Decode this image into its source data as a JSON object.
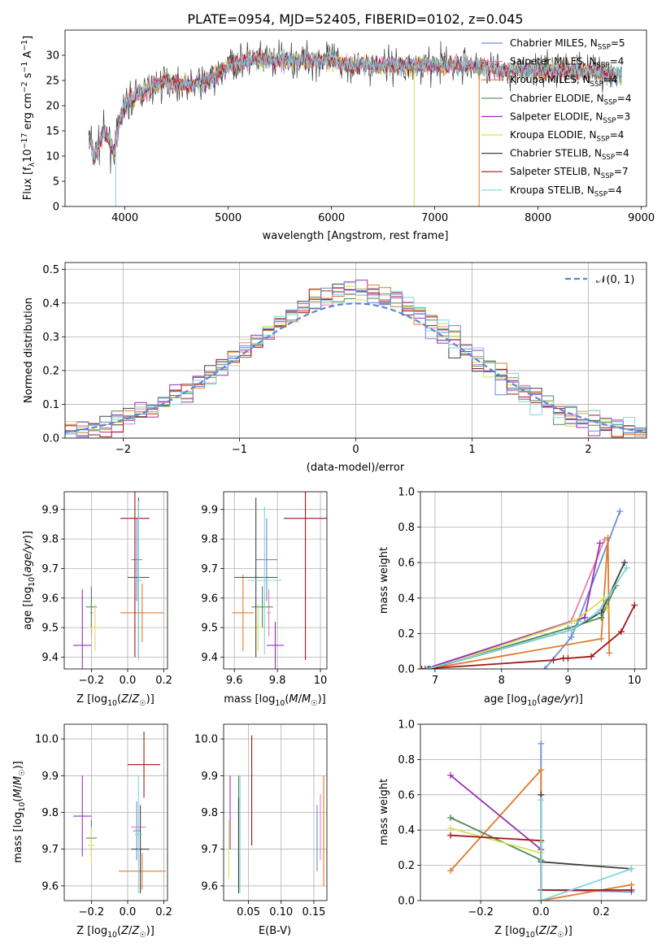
{
  "page_title": "PLATE=0954, MJD=52405, FIBERID=0102, z=0.045",
  "legend": [
    {
      "name": "Chabrier MILES, N",
      "suffix": "=5",
      "color": "#6a8fd6"
    },
    {
      "name": "Salpeter MILES, N",
      "suffix": "=4",
      "color": "#e87fb0"
    },
    {
      "name": "Kroupa MILES, N",
      "suffix": "=4",
      "color": "#e07b2a"
    },
    {
      "name": "Chabrier ELODIE, N",
      "suffix": "=4",
      "color": "#4f8a5b"
    },
    {
      "name": "Salpeter ELODIE, N",
      "suffix": "=3",
      "color": "#9b30b0"
    },
    {
      "name": "Kroupa ELODIE, N",
      "suffix": "=4",
      "color": "#d4e157"
    },
    {
      "name": "Chabrier STELIB, N",
      "suffix": "=4",
      "color": "#404040"
    },
    {
      "name": "Salpeter STELIB, N",
      "suffix": "=7",
      "color": "#a01818"
    },
    {
      "name": "Kroupa STELIB, N",
      "suffix": "=4",
      "color": "#7fd6dc"
    }
  ],
  "legend_sub": "SSP",
  "normal_legend": "𝒩(0, 1)",
  "chart_data": [
    {
      "id": "spectrum",
      "type": "line",
      "xlabel": "wavelength [Angstrom, rest frame]",
      "ylabel": "Flux [f",
      "ylabel_full": "Flux [fλ10⁻¹⁷ erg cm⁻² s⁻¹ A⁻¹]",
      "xlim": [
        3420,
        9050
      ],
      "ylim": [
        0,
        35
      ],
      "xticks": [
        4000,
        5000,
        6000,
        7000,
        8000,
        9000
      ],
      "yticks": [
        0,
        5,
        10,
        15,
        20,
        25,
        30
      ],
      "anchors": [
        [
          3650,
          14
        ],
        [
          3700,
          10
        ],
        [
          3800,
          15
        ],
        [
          3900,
          11
        ],
        [
          3950,
          17
        ],
        [
          4000,
          20
        ],
        [
          4100,
          22
        ],
        [
          4200,
          23
        ],
        [
          4300,
          24
        ],
        [
          4400,
          25
        ],
        [
          4600,
          24
        ],
        [
          4800,
          25
        ],
        [
          4900,
          26
        ],
        [
          5000,
          28
        ],
        [
          5200,
          29
        ],
        [
          5500,
          29
        ],
        [
          5800,
          29
        ],
        [
          6000,
          29
        ],
        [
          6200,
          28
        ],
        [
          6500,
          28
        ],
        [
          6800,
          28
        ],
        [
          7000,
          28
        ],
        [
          7300,
          28
        ],
        [
          7600,
          27
        ],
        [
          7900,
          27
        ],
        [
          8200,
          27
        ],
        [
          8500,
          27
        ],
        [
          8800,
          26
        ]
      ],
      "dropouts": [
        [
          3910,
          0
        ],
        [
          6800,
          0
        ],
        [
          7430,
          0
        ]
      ]
    },
    {
      "id": "residuals",
      "type": "histogram",
      "xlabel": "(data-model)/error",
      "ylabel": "Normed distribution",
      "xlim": [
        -2.5,
        2.5
      ],
      "ylim": [
        0,
        0.52
      ],
      "xticks": [
        -2,
        -1,
        0,
        1,
        2
      ],
      "yticks": [
        0.0,
        0.1,
        0.2,
        0.3,
        0.4,
        0.5
      ],
      "bin_edges_start": -2.5,
      "bin_width": 0.1,
      "bin_count": 50,
      "normal_curve": {
        "mu": 0,
        "sigma": 1
      }
    },
    {
      "id": "age_vs_Z",
      "type": "scatter",
      "xlabel": "Z [log",
      "xlabel_full": "Z [log10(Z/Z☉)]",
      "ylabel_full": "age [log10(age/yr)]",
      "xlim": [
        -0.35,
        0.22
      ],
      "ylim": [
        9.36,
        9.96
      ],
      "xticks": [
        -0.2,
        0.0,
        0.2
      ],
      "yticks": [
        9.4,
        9.5,
        9.6,
        9.7,
        9.8,
        9.9
      ],
      "points": [
        {
          "x": 0.05,
          "y": 9.73,
          "xerr": 0.03,
          "yerr": 0.14,
          "c": 0
        },
        {
          "x": -0.2,
          "y": 9.55,
          "xerr": 0.01,
          "yerr": 0.08,
          "c": 1
        },
        {
          "x": 0.08,
          "y": 9.55,
          "xerr": 0.12,
          "yerr": 0.1,
          "c": 2
        },
        {
          "x": -0.2,
          "y": 9.57,
          "xerr": 0.03,
          "yerr": 0.07,
          "c": 3
        },
        {
          "x": -0.25,
          "y": 9.44,
          "xerr": 0.05,
          "yerr": 0.19,
          "c": 4
        },
        {
          "x": -0.18,
          "y": 9.5,
          "xerr": 0.03,
          "yerr": 0.08,
          "c": 5
        },
        {
          "x": 0.06,
          "y": 9.67,
          "xerr": 0.06,
          "yerr": 0.27,
          "c": 6
        },
        {
          "x": 0.04,
          "y": 9.87,
          "xerr": 0.08,
          "yerr": 0.47,
          "c": 7
        },
        {
          "x": 0.06,
          "y": 9.66,
          "xerr": 0.02,
          "yerr": 0.27,
          "c": 8
        }
      ]
    },
    {
      "id": "age_vs_mass",
      "type": "scatter",
      "xlabel_full": "mass [log10(M/M☉)]",
      "xlim": [
        9.55,
        10.03
      ],
      "ylim": [
        9.36,
        9.96
      ],
      "xticks": [
        9.6,
        9.8,
        10.0
      ],
      "yticks": [
        9.4,
        9.5,
        9.6,
        9.7,
        9.8,
        9.9
      ],
      "points": [
        {
          "x": 9.75,
          "y": 9.73,
          "xerr": 0.05,
          "yerr": 0.14,
          "c": 0
        },
        {
          "x": 9.76,
          "y": 9.55,
          "xerr": 0.01,
          "yerr": 0.08,
          "c": 1
        },
        {
          "x": 9.64,
          "y": 9.55,
          "xerr": 0.05,
          "yerr": 0.13,
          "c": 2
        },
        {
          "x": 9.73,
          "y": 9.57,
          "xerr": 0.05,
          "yerr": 0.07,
          "c": 3
        },
        {
          "x": 9.79,
          "y": 9.44,
          "xerr": 0.04,
          "yerr": 0.08,
          "c": 4
        },
        {
          "x": 9.71,
          "y": 9.5,
          "xerr": 0.02,
          "yerr": 0.08,
          "c": 5
        },
        {
          "x": 9.7,
          "y": 9.67,
          "xerr": 0.1,
          "yerr": 0.27,
          "c": 6
        },
        {
          "x": 9.93,
          "y": 9.87,
          "xerr": 0.1,
          "yerr": 0.48,
          "c": 7
        },
        {
          "x": 9.74,
          "y": 9.66,
          "xerr": 0.08,
          "yerr": 0.25,
          "c": 8
        }
      ]
    },
    {
      "id": "weight_vs_age",
      "type": "line",
      "xlabel_full": "age [log10(age/yr)]",
      "ylabel": "mass weight",
      "xlim": [
        6.78,
        10.18
      ],
      "ylim": [
        0,
        1
      ],
      "xticks": [
        7,
        8,
        9,
        10
      ],
      "yticks": [
        0.0,
        0.2,
        0.4,
        0.6,
        0.8,
        1.0
      ],
      "series": [
        {
          "c": 0,
          "x": [
            8.65,
            9.05,
            9.15,
            9.78
          ],
          "y": [
            0.0,
            0.18,
            0.27,
            0.89
          ]
        },
        {
          "c": 1,
          "x": [
            6.85,
            9.05,
            9.55
          ],
          "y": [
            0.0,
            0.27,
            0.73
          ]
        },
        {
          "c": 2,
          "x": [
            6.9,
            9.5,
            9.6,
            9.62
          ],
          "y": [
            0.0,
            0.17,
            0.74,
            0.09
          ]
        },
        {
          "c": 3,
          "x": [
            6.92,
            9.0,
            9.5,
            9.72
          ],
          "y": [
            0.0,
            0.23,
            0.29,
            0.47
          ]
        },
        {
          "c": 4,
          "x": [
            6.85,
            9.25,
            9.48
          ],
          "y": [
            0.0,
            0.29,
            0.71
          ]
        },
        {
          "c": 5,
          "x": [
            6.95,
            9.1,
            9.55,
            9.6
          ],
          "y": [
            0.0,
            0.27,
            0.4,
            0.33
          ]
        },
        {
          "c": 6,
          "x": [
            6.9,
            9.05,
            9.5,
            9.85
          ],
          "y": [
            0.0,
            0.22,
            0.32,
            0.6
          ]
        },
        {
          "c": 7,
          "x": [
            6.8,
            8.78,
            8.93,
            9.0,
            9.35,
            9.8,
            10.0
          ],
          "y": [
            0.0,
            0.05,
            0.06,
            0.06,
            0.07,
            0.21,
            0.36
          ]
        },
        {
          "c": 8,
          "x": [
            6.88,
            9.05,
            9.45,
            9.88
          ],
          "y": [
            0.0,
            0.22,
            0.32,
            0.57
          ]
        }
      ]
    },
    {
      "id": "mass_vs_Z",
      "type": "scatter",
      "xlabel_full": "Z [log10(Z/Z☉)]",
      "ylabel_full": "mass [log10(M/M☉)]",
      "xlim": [
        -0.35,
        0.22
      ],
      "ylim": [
        9.56,
        10.04
      ],
      "xticks": [
        -0.2,
        0.0,
        0.2
      ],
      "yticks": [
        9.6,
        9.7,
        9.8,
        9.9,
        10.0
      ],
      "points": [
        {
          "x": 0.05,
          "y": 9.75,
          "xerr": 0.02,
          "yerr": 0.08,
          "c": 0
        },
        {
          "x": 0.06,
          "y": 9.76,
          "xerr": 0.04,
          "yerr": 0.01,
          "c": 1
        },
        {
          "x": 0.08,
          "y": 9.64,
          "xerr": 0.13,
          "yerr": 0.05,
          "c": 2
        },
        {
          "x": -0.2,
          "y": 9.73,
          "xerr": 0.03,
          "yerr": 0.05,
          "c": 3
        },
        {
          "x": -0.25,
          "y": 9.79,
          "xerr": 0.05,
          "yerr": 0.11,
          "c": 4
        },
        {
          "x": -0.2,
          "y": 9.71,
          "xerr": 0.02,
          "yerr": 0.05,
          "c": 5
        },
        {
          "x": 0.07,
          "y": 9.7,
          "xerr": 0.05,
          "yerr": 0.12,
          "c": 6
        },
        {
          "x": 0.09,
          "y": 9.93,
          "xerr": 0.09,
          "yerr": 0.09,
          "c": 7
        },
        {
          "x": 0.06,
          "y": 9.74,
          "xerr": 0.02,
          "yerr": 0.16,
          "c": 8
        }
      ]
    },
    {
      "id": "mass_vs_ebv",
      "type": "scatter",
      "xlabel": "E(B-V)",
      "xlim": [
        0.012,
        0.17
      ],
      "ylim": [
        9.56,
        10.04
      ],
      "xticks": [
        0.05,
        0.1,
        0.15
      ],
      "yticks": [
        9.6,
        9.7,
        9.8,
        9.9,
        10.0
      ],
      "points": [
        {
          "x": 0.155,
          "y": 9.73,
          "yerr": 0.09,
          "c": 0
        },
        {
          "x": 0.16,
          "y": 9.76,
          "yerr": 0.09,
          "c": 1
        },
        {
          "x": 0.165,
          "y": 9.75,
          "yerr": 0.15,
          "c": 2
        },
        {
          "x": 0.035,
          "y": 9.75,
          "yerr": 0.15,
          "c": 3
        },
        {
          "x": 0.022,
          "y": 9.8,
          "yerr": 0.1,
          "c": 4
        },
        {
          "x": 0.02,
          "y": 9.7,
          "yerr": 0.08,
          "c": 5
        },
        {
          "x": 0.035,
          "y": 9.71,
          "yerr": 0.13,
          "c": 6
        },
        {
          "x": 0.055,
          "y": 9.86,
          "yerr": 0.15,
          "c": 7
        },
        {
          "x": 0.037,
          "y": 9.74,
          "yerr": 0.16,
          "c": 8
        }
      ]
    },
    {
      "id": "weight_vs_Z",
      "type": "line",
      "xlabel_full": "Z [log10(Z/Z☉)]",
      "ylabel": "mass weight",
      "xlim": [
        -0.4,
        0.35
      ],
      "ylim": [
        0,
        1
      ],
      "xticks": [
        -0.2,
        0.0,
        0.2
      ],
      "yticks": [
        0.0,
        0.2,
        0.4,
        0.6,
        0.8,
        1.0
      ],
      "series": [
        {
          "c": 0,
          "x": [
            0.0,
            0.0,
            0.3
          ],
          "y": [
            0.89,
            0.06,
            0.05
          ]
        },
        {
          "c": 2,
          "x": [
            -0.3,
            0.0,
            0.0,
            0.3
          ],
          "y": [
            0.17,
            0.74,
            0.0,
            0.09
          ]
        },
        {
          "c": 3,
          "x": [
            -0.3,
            0.0,
            0.0
          ],
          "y": [
            0.47,
            0.23,
            0.29
          ]
        },
        {
          "c": 4,
          "x": [
            -0.3,
            0.0,
            0.0
          ],
          "y": [
            0.71,
            0.29,
            0.0
          ]
        },
        {
          "c": 5,
          "x": [
            -0.3,
            0.0,
            0.0
          ],
          "y": [
            0.41,
            0.27,
            0.33
          ]
        },
        {
          "c": 6,
          "x": [
            0.0,
            0.0,
            0.3
          ],
          "y": [
            0.6,
            0.22,
            0.18
          ]
        },
        {
          "c": 7,
          "x": [
            -0.3,
            0.0,
            0.0,
            0.3
          ],
          "y": [
            0.37,
            0.34,
            0.06,
            0.06
          ]
        },
        {
          "c": 8,
          "x": [
            0.0,
            0.0,
            0.3
          ],
          "y": [
            0.57,
            0.0,
            0.18
          ]
        }
      ]
    }
  ]
}
